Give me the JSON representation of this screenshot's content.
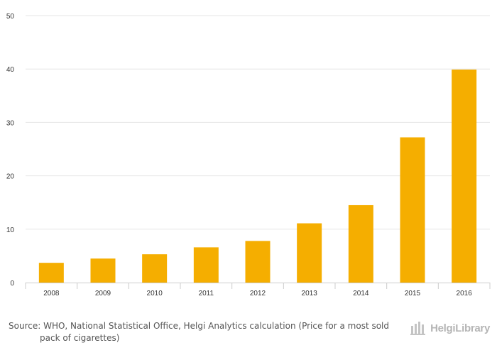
{
  "chart_data": {
    "type": "bar",
    "categories": [
      "2008",
      "2009",
      "2010",
      "2011",
      "2012",
      "2013",
      "2014",
      "2015",
      "2016"
    ],
    "values": [
      3.7,
      4.5,
      5.3,
      6.6,
      7.8,
      11.1,
      14.5,
      27.2,
      39.9
    ],
    "title": "",
    "xlabel": "",
    "ylabel": "",
    "ylim": [
      0,
      50
    ],
    "yticks": [
      0,
      10,
      20,
      30,
      40,
      50
    ],
    "grid": true,
    "legend": "none",
    "bar_color": "#f5ae00"
  },
  "footer": {
    "source": "Source: WHO, National Statistical Office, Helgi Analytics calculation (Price for a most sold pack of cigarettes)",
    "brand": "HelgiLibrary",
    "brand_logo_icon": "tower-icon"
  },
  "colors": {
    "bar": "#f5ae00",
    "grid": "#e6e6e6",
    "axis": "#cccccc",
    "text": "#333333",
    "footer_text": "#555555",
    "brand_text": "#b5b5b5"
  }
}
